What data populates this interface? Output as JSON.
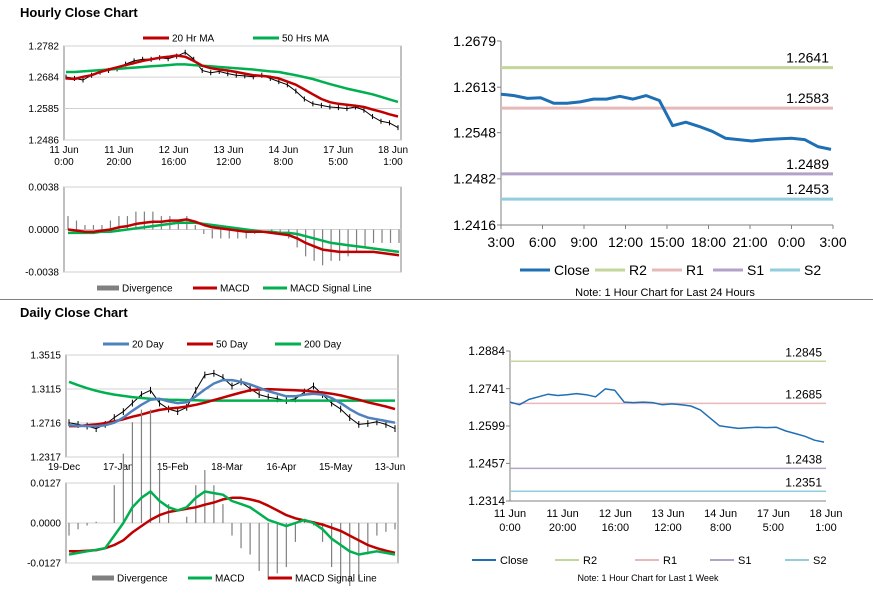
{
  "sections": {
    "hourly_title": "Hourly Close Chart",
    "daily_title": "Daily Close Chart"
  },
  "colors": {
    "price": "#000000",
    "ma_short": "#c00000",
    "ma_mid": "#c00000",
    "ma_long": "#00b050",
    "ma_20day": "#4f81bd",
    "divergence": "#808080",
    "macd_hourly": "#c00000",
    "signal_hourly": "#00b050",
    "macd_daily": "#00b050",
    "signal_daily": "#c00000",
    "close": "#1f6fb5",
    "r2": "#c3d69b",
    "r1": "#e6b9b8",
    "s1": "#b3a2c7",
    "s2": "#92cddc"
  },
  "chart_data": [
    {
      "id": "hourly_price",
      "type": "line",
      "title": "Hourly Close Chart",
      "y_ticks": [
        "1.2782",
        "1.2684",
        "1.2585",
        "1.2486"
      ],
      "ylim": [
        1.2486,
        1.2782
      ],
      "x_labels": [
        [
          "11 Jun",
          "0:00"
        ],
        [
          "11 Jun",
          "20:00"
        ],
        [
          "12 Jun",
          "16:00"
        ],
        [
          "13 Jun",
          "12:00"
        ],
        [
          "14 Jun",
          "8:00"
        ],
        [
          "17 Jun",
          "5:00"
        ],
        [
          "18 Jun",
          "1:00"
        ]
      ],
      "legend": [
        "20 Hr MA",
        "50 Hrs MA"
      ],
      "series": [
        {
          "name": "Price",
          "values": [
            1.2684,
            1.268,
            1.2675,
            1.269,
            1.27,
            1.2705,
            1.271,
            1.2725,
            1.2735,
            1.274,
            1.274,
            1.2745,
            1.2742,
            1.275,
            1.2762,
            1.274,
            1.2705,
            1.2698,
            1.2702,
            1.2695,
            1.269,
            1.2688,
            1.2685,
            1.269,
            1.268,
            1.267,
            1.266,
            1.264,
            1.2615,
            1.26,
            1.2595,
            1.259,
            1.2588,
            1.2585,
            1.259,
            1.258,
            1.256,
            1.2545,
            1.254,
            1.2525
          ]
        },
        {
          "name": "20 Hr MA",
          "values": [
            1.268,
            1.2678,
            1.2685,
            1.269,
            1.27,
            1.2708,
            1.2715,
            1.2722,
            1.2728,
            1.2735,
            1.274,
            1.2745,
            1.2748,
            1.2752,
            1.2748,
            1.2735,
            1.272,
            1.2712,
            1.2708,
            1.2705,
            1.27,
            1.2695,
            1.269,
            1.2688,
            1.2685,
            1.268,
            1.267,
            1.266,
            1.2645,
            1.263,
            1.2615,
            1.2605,
            1.26,
            1.2597,
            1.2594,
            1.259,
            1.2582,
            1.2575,
            1.2567,
            1.256
          ]
        },
        {
          "name": "50 Hrs MA",
          "values": [
            1.27,
            1.27,
            1.2702,
            1.2704,
            1.2706,
            1.2708,
            1.271,
            1.2712,
            1.2714,
            1.2716,
            1.2718,
            1.272,
            1.2722,
            1.2724,
            1.2724,
            1.2722,
            1.272,
            1.2718,
            1.2716,
            1.2714,
            1.2712,
            1.271,
            1.2708,
            1.2705,
            1.2702,
            1.27,
            1.2695,
            1.269,
            1.2684,
            1.2678,
            1.267,
            1.2662,
            1.2655,
            1.2648,
            1.2642,
            1.2636,
            1.263,
            1.2622,
            1.2614,
            1.2606
          ]
        }
      ]
    },
    {
      "id": "hourly_macd",
      "type": "line",
      "y_ticks": [
        "0.0038",
        "0.0000",
        "-0.0038"
      ],
      "ylim": [
        -0.0038,
        0.0038
      ],
      "legend": [
        "Divergence",
        "MACD",
        "MACD Signal Line"
      ],
      "series": [
        {
          "name": "MACD",
          "values": [
            0.0,
            -0.0001,
            -0.0002,
            -0.0002,
            -0.0001,
            0.0,
            0.0002,
            0.0003,
            0.0005,
            0.0006,
            0.0007,
            0.0007,
            0.0008,
            0.0008,
            0.0009,
            0.0007,
            0.0004,
            0.0002,
            0.0001,
            0.0,
            -0.0001,
            -0.0002,
            -0.0002,
            -0.0002,
            -0.0003,
            -0.0004,
            -0.0005,
            -0.0008,
            -0.0012,
            -0.0015,
            -0.0018,
            -0.0019,
            -0.002,
            -0.002,
            -0.002,
            -0.002,
            -0.002,
            -0.0021,
            -0.0022,
            -0.0023
          ]
        },
        {
          "name": "MACD Signal Line",
          "values": [
            -0.0003,
            -0.0003,
            -0.0003,
            -0.0003,
            -0.0002,
            -0.0002,
            -0.0001,
            0.0,
            0.0001,
            0.0002,
            0.0003,
            0.0004,
            0.0005,
            0.0006,
            0.0006,
            0.0006,
            0.0005,
            0.0004,
            0.0003,
            0.0002,
            0.0001,
            0.0,
            -0.0001,
            -0.0002,
            -0.0002,
            -0.0003,
            -0.0003,
            -0.0004,
            -0.0006,
            -0.0008,
            -0.001,
            -0.0012,
            -0.0013,
            -0.0014,
            -0.0015,
            -0.0016,
            -0.0017,
            -0.0018,
            -0.0019,
            -0.002
          ]
        }
      ]
    },
    {
      "id": "hourly_levels",
      "type": "line",
      "y_ticks": [
        "1.2679",
        "1.2613",
        "1.2548",
        "1.2482",
        "1.2416"
      ],
      "ylim": [
        1.2416,
        1.2679
      ],
      "x_labels": [
        "3:00",
        "6:00",
        "9:00",
        "12:00",
        "15:00",
        "18:00",
        "21:00",
        "0:00",
        "3:00"
      ],
      "legend": [
        "Close",
        "R2",
        "R1",
        "S1",
        "S2"
      ],
      "note": "Note: 1 Hour Chart for Last 24 Hours",
      "levels": [
        {
          "name": "R2",
          "value": 1.2641,
          "label": "1.2641"
        },
        {
          "name": "R1",
          "value": 1.2583,
          "label": "1.2583"
        },
        {
          "name": "S1",
          "value": 1.2489,
          "label": "1.2489"
        },
        {
          "name": "S2",
          "value": 1.2453,
          "label": "1.2453"
        }
      ],
      "series": [
        {
          "name": "Close",
          "values": [
            1.2603,
            1.2601,
            1.2597,
            1.2598,
            1.259,
            1.259,
            1.2592,
            1.2596,
            1.2596,
            1.26,
            1.2596,
            1.2601,
            1.2594,
            1.2558,
            1.2563,
            1.2557,
            1.255,
            1.254,
            1.2538,
            1.2536,
            1.2538,
            1.2539,
            1.254,
            1.2538,
            1.2528,
            1.2524
          ]
        }
      ]
    },
    {
      "id": "daily_price",
      "type": "line",
      "title": "Daily Close Chart",
      "y_ticks": [
        "1.3515",
        "1.3115",
        "1.2716",
        "1.2317"
      ],
      "ylim": [
        1.2317,
        1.3515
      ],
      "x_labels": [
        "19-Dec",
        "17-Jan",
        "15-Feb",
        "18-Mar",
        "16-Apr",
        "15-May",
        "13-Jun"
      ],
      "legend": [
        "20 Day",
        "50 Day",
        "200 Day"
      ],
      "series": [
        {
          "name": "Price",
          "values": [
            1.272,
            1.27,
            1.268,
            1.265,
            1.27,
            1.278,
            1.285,
            1.295,
            1.305,
            1.31,
            1.295,
            1.288,
            1.285,
            1.29,
            1.31,
            1.328,
            1.33,
            1.325,
            1.315,
            1.32,
            1.312,
            1.305,
            1.302,
            1.3,
            1.298,
            1.3,
            1.308,
            1.315,
            1.305,
            1.295,
            1.288,
            1.278,
            1.27,
            1.271,
            1.273,
            1.27,
            1.265
          ]
        },
        {
          "name": "20 Day",
          "values": [
            1.269,
            1.2685,
            1.268,
            1.2678,
            1.269,
            1.272,
            1.278,
            1.286,
            1.293,
            1.299,
            1.3,
            1.297,
            1.295,
            1.296,
            1.303,
            1.311,
            1.318,
            1.322,
            1.322,
            1.32,
            1.317,
            1.313,
            1.309,
            1.306,
            1.303,
            1.303,
            1.305,
            1.306,
            1.305,
            1.301,
            1.295,
            1.288,
            1.282,
            1.278,
            1.276,
            1.274,
            1.272
          ]
        },
        {
          "name": "50 Day",
          "values": [
            1.268,
            1.268,
            1.269,
            1.27,
            1.2715,
            1.2735,
            1.276,
            1.279,
            1.2815,
            1.2845,
            1.287,
            1.2885,
            1.2895,
            1.291,
            1.293,
            1.2955,
            1.2985,
            1.3015,
            1.3045,
            1.3075,
            1.31,
            1.311,
            1.3115,
            1.311,
            1.3105,
            1.31,
            1.3095,
            1.3085,
            1.3075,
            1.306,
            1.304,
            1.3015,
            1.299,
            1.296,
            1.2935,
            1.291,
            1.288
          ]
        },
        {
          "name": "200 Day",
          "values": [
            1.32,
            1.316,
            1.3125,
            1.3095,
            1.307,
            1.305,
            1.3035,
            1.302,
            1.301,
            1.3,
            1.2995,
            1.299,
            1.2988,
            1.2985,
            1.2983,
            1.298,
            1.298,
            1.298,
            1.298,
            1.298,
            1.298,
            1.298,
            1.298,
            1.298,
            1.298,
            1.298,
            1.298,
            1.298,
            1.298,
            1.298,
            1.298,
            1.298,
            1.298,
            1.298,
            1.298,
            1.298,
            1.298
          ]
        }
      ]
    },
    {
      "id": "daily_macd",
      "type": "line",
      "y_ticks": [
        "0.0127",
        "0.0000",
        "-0.0127"
      ],
      "ylim": [
        -0.0127,
        0.0127
      ],
      "legend": [
        "Divergence",
        "MACD",
        "MACD Signal Line"
      ],
      "series": [
        {
          "name": "MACD",
          "values": [
            -0.01,
            -0.0095,
            -0.009,
            -0.0085,
            -0.008,
            -0.004,
            0.0,
            0.005,
            0.008,
            0.01,
            0.007,
            0.005,
            0.004,
            0.005,
            0.008,
            0.01,
            0.0095,
            0.009,
            0.007,
            0.006,
            0.005,
            0.003,
            0.001,
            0.0,
            -0.001,
            0.0,
            0.001,
            0.0,
            -0.002,
            -0.005,
            -0.007,
            -0.009,
            -0.01,
            -0.0095,
            -0.009,
            -0.0095,
            -0.01
          ]
        },
        {
          "name": "MACD Signal Line",
          "values": [
            -0.009,
            -0.009,
            -0.0088,
            -0.0086,
            -0.008,
            -0.007,
            -0.0055,
            -0.003,
            -0.001,
            0.001,
            0.0025,
            0.0035,
            0.004,
            0.0045,
            0.005,
            0.0058,
            0.0065,
            0.0075,
            0.008,
            0.008,
            0.0075,
            0.0068,
            0.0055,
            0.004,
            0.0025,
            0.0015,
            0.0008,
            0.0002,
            -0.0005,
            -0.0015,
            -0.0025,
            -0.004,
            -0.0055,
            -0.007,
            -0.008,
            -0.0088,
            -0.0095
          ]
        }
      ]
    },
    {
      "id": "daily_levels",
      "type": "line",
      "y_ticks": [
        "1.2884",
        "1.2741",
        "1.2599",
        "1.2457",
        "1.2314"
      ],
      "ylim": [
        1.2314,
        1.2884
      ],
      "x_labels": [
        [
          "11 Jun",
          "0:00"
        ],
        [
          "11 Jun",
          "20:00"
        ],
        [
          "12 Jun",
          "16:00"
        ],
        [
          "13 Jun",
          "12:00"
        ],
        [
          "14 Jun",
          "8:00"
        ],
        [
          "17 Jun",
          "5:00"
        ],
        [
          "18 Jun",
          "1:00"
        ]
      ],
      "legend": [
        "Close",
        "R2",
        "R1",
        "S1",
        "S2"
      ],
      "note": "Note: 1 Hour Chart for Last 1 Week",
      "levels": [
        {
          "name": "R2",
          "value": 1.2845,
          "label": "1.2845"
        },
        {
          "name": "R1",
          "value": 1.2685,
          "label": "1.2685"
        },
        {
          "name": "S1",
          "value": 1.2438,
          "label": "1.2438"
        },
        {
          "name": "S2",
          "value": 1.2351,
          "label": "1.2351"
        }
      ],
      "series": [
        {
          "name": "Close",
          "values": [
            1.269,
            1.268,
            1.27,
            1.271,
            1.272,
            1.2715,
            1.2718,
            1.2722,
            1.2718,
            1.271,
            1.274,
            1.2735,
            1.269,
            1.2688,
            1.269,
            1.2688,
            1.268,
            1.2683,
            1.268,
            1.2675,
            1.266,
            1.263,
            1.26,
            1.2595,
            1.259,
            1.2592,
            1.2594,
            1.2593,
            1.2594,
            1.258,
            1.257,
            1.256,
            1.2545,
            1.2538
          ]
        }
      ]
    }
  ]
}
